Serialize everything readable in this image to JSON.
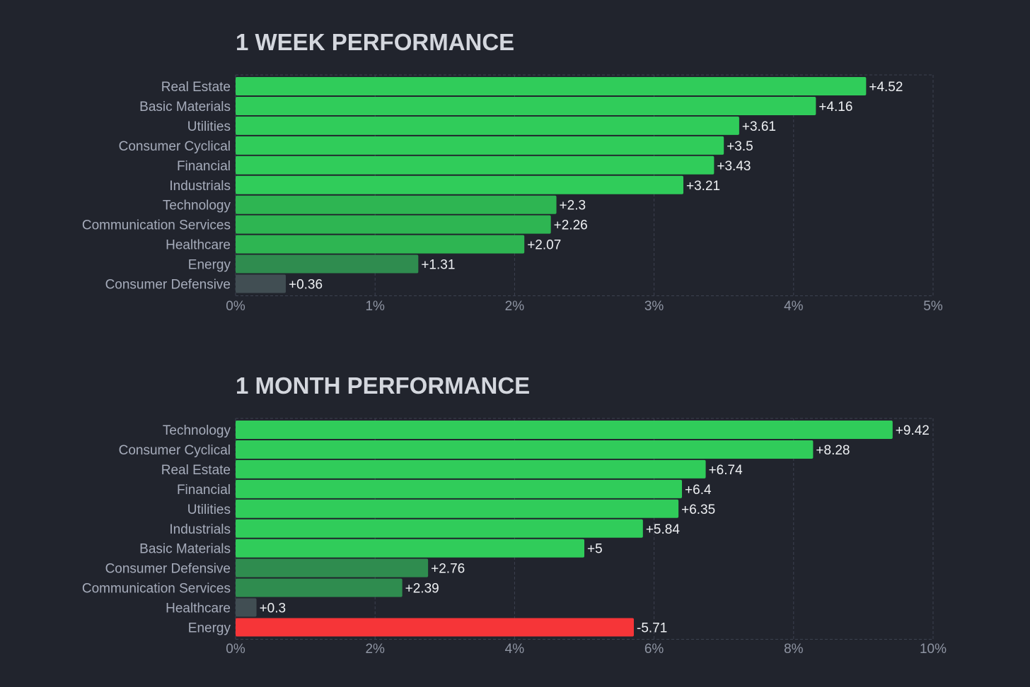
{
  "colors": {
    "background": "#21242d",
    "strong_gain": "#30cc5a",
    "moderate_gain": "#2eb552",
    "weak_gain": "#2f8c4f",
    "flat": "#414e53",
    "loss": "#f63538",
    "grid": "#3c4150"
  },
  "chart_data": [
    {
      "type": "bar",
      "orientation": "horizontal",
      "title": "1 WEEK PERFORMANCE",
      "categories": [
        "Real Estate",
        "Basic Materials",
        "Utilities",
        "Consumer Cyclical",
        "Financial",
        "Industrials",
        "Technology",
        "Communication Services",
        "Healthcare",
        "Energy",
        "Consumer Defensive"
      ],
      "values": [
        4.52,
        4.16,
        3.61,
        3.5,
        3.43,
        3.21,
        2.3,
        2.26,
        2.07,
        1.31,
        0.36
      ],
      "value_labels": [
        "+4.52",
        "+4.16",
        "+3.61",
        "+3.5",
        "+3.43",
        "+3.21",
        "+2.3",
        "+2.26",
        "+2.07",
        "+1.31",
        "+0.36"
      ],
      "colors": [
        "#30cc5a",
        "#30cc5a",
        "#30cc5a",
        "#30cc5a",
        "#30cc5a",
        "#30cc5a",
        "#2eb552",
        "#2eb552",
        "#2eb552",
        "#2f8c4f",
        "#414e53"
      ],
      "xlim": [
        0,
        5
      ],
      "xticks": [
        0,
        1,
        2,
        3,
        4,
        5
      ],
      "xtick_labels": [
        "0%",
        "1%",
        "2%",
        "3%",
        "4%",
        "5%"
      ],
      "grid": true
    },
    {
      "type": "bar",
      "orientation": "horizontal",
      "title": "1 MONTH PERFORMANCE",
      "categories": [
        "Technology",
        "Consumer Cyclical",
        "Real Estate",
        "Financial",
        "Utilities",
        "Industrials",
        "Basic Materials",
        "Consumer Defensive",
        "Communication Services",
        "Healthcare",
        "Energy"
      ],
      "values": [
        9.42,
        8.28,
        6.74,
        6.4,
        6.35,
        5.84,
        5,
        2.76,
        2.39,
        0.3,
        -5.71
      ],
      "value_labels": [
        "+9.42",
        "+8.28",
        "+6.74",
        "+6.4",
        "+6.35",
        "+5.84",
        "+5",
        "+2.76",
        "+2.39",
        "+0.3",
        "-5.71"
      ],
      "colors": [
        "#30cc5a",
        "#30cc5a",
        "#30cc5a",
        "#30cc5a",
        "#30cc5a",
        "#30cc5a",
        "#30cc5a",
        "#2f8c4f",
        "#2f8c4f",
        "#414e53",
        "#f63538"
      ],
      "bar_length_uses_absolute_value": true,
      "xlim": [
        0,
        10
      ],
      "xticks": [
        0,
        2,
        4,
        6,
        8,
        10
      ],
      "xtick_labels": [
        "0%",
        "2%",
        "4%",
        "6%",
        "8%",
        "10%"
      ],
      "grid": true
    }
  ]
}
